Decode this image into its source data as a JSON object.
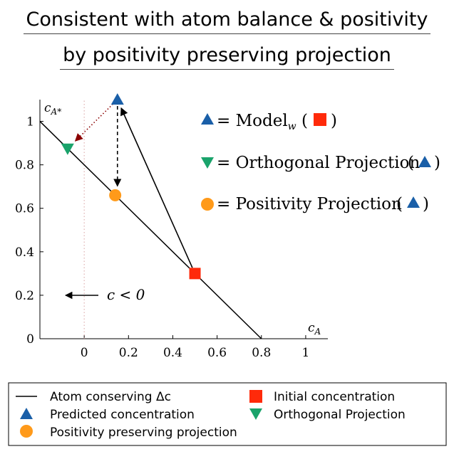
{
  "title": {
    "line1": "Consistent with atom balance & positivity",
    "line2": "by positivity preserving projection"
  },
  "chart_data": {
    "type": "scatter",
    "xlabel": "c_A",
    "ylabel": "c_A*",
    "xlim": [
      -0.2,
      1.1
    ],
    "ylim": [
      0,
      1.1
    ],
    "x_ticks": [
      0,
      0.2,
      0.4,
      0.6,
      0.8,
      1
    ],
    "x_tick_labels": [
      "0",
      "0.2",
      "0.4",
      "0.6",
      "0.8",
      "1"
    ],
    "y_ticks": [
      0,
      0.2,
      0.4,
      0.6,
      0.8,
      1
    ],
    "y_tick_labels": [
      "0",
      "0.2",
      "0.4",
      "0.6",
      "0.8",
      "1"
    ],
    "grid": false,
    "series": [
      {
        "name": "Atom conserving Δc",
        "kind": "line",
        "color": "#000000",
        "points": [
          [
            -0.2,
            1.0
          ],
          [
            0.8,
            0.0
          ]
        ]
      },
      {
        "name": "Initial concentration",
        "kind": "marker",
        "marker": "square",
        "color": "#ff2a0a",
        "points": [
          [
            0.5,
            0.3
          ]
        ]
      },
      {
        "name": "Predicted concentration",
        "kind": "marker",
        "marker": "triangle-up",
        "color": "#1a5fa8",
        "points": [
          [
            0.15,
            1.1
          ]
        ]
      },
      {
        "name": "Orthogonal Projection",
        "kind": "marker",
        "marker": "triangle-down",
        "color": "#1aa36b",
        "points": [
          [
            -0.075,
            0.875
          ]
        ]
      },
      {
        "name": "Positivity preserving projection",
        "kind": "marker",
        "marker": "circle",
        "color": "#ff9a1a",
        "points": [
          [
            0.14,
            0.66
          ]
        ]
      }
    ],
    "arrows": [
      {
        "from": [
          0.5,
          0.3
        ],
        "to": [
          0.15,
          1.1
        ],
        "style": "solid",
        "color": "#000000"
      },
      {
        "from": [
          0.15,
          1.1
        ],
        "to": [
          0.15,
          0.66
        ],
        "style": "dashed",
        "color": "#000000"
      },
      {
        "from": [
          0.15,
          1.1
        ],
        "to": [
          -0.07,
          0.88
        ],
        "style": "dotted",
        "color": "#8b0000"
      }
    ],
    "vertical_guides": [
      {
        "x": 0,
        "style": "dotted",
        "color": "#d9a0a0"
      }
    ],
    "annotations": [
      {
        "text": "c < 0",
        "arrow": true,
        "at": [
          -0.1,
          0.2
        ]
      },
      {
        "text": "= Model_w (",
        "lhs_marker": "triangle-up",
        "arg_marker": "square"
      },
      {
        "text": "= Orthogonal Projection (",
        "lhs_marker": "triangle-down",
        "arg_marker": "triangle-up"
      },
      {
        "text": "= Positivity Projection (",
        "lhs_marker": "circle",
        "arg_marker": "triangle-up"
      }
    ],
    "legend_placement": "bottom, two columns"
  },
  "legend": {
    "line_label": "Atom conserving Δc",
    "initial_label": "Initial concentration",
    "predicted_label": "Predicted concentration",
    "orthogonal_label": "Orthogonal Projection",
    "positivity_label": "Positivity preserving projection"
  },
  "annotations": {
    "negative_region": "c < 0",
    "model_text": "= Model",
    "model_sub": "w",
    "orth_text": "= Orthogonal Projection",
    "pos_text": "= Positivity Projection",
    "open_paren": "(",
    "close_paren": ")"
  },
  "axis": {
    "xlabel_main": "c",
    "xlabel_sub": "A",
    "ylabel_main": "c",
    "ylabel_sub": "A*"
  },
  "colors": {
    "red": "#ff2a0a",
    "blue": "#1a5fa8",
    "green": "#1aa36b",
    "orange": "#ff9a1a",
    "dotted_arrow": "#8b0000",
    "guide": "#d9a0a0"
  }
}
